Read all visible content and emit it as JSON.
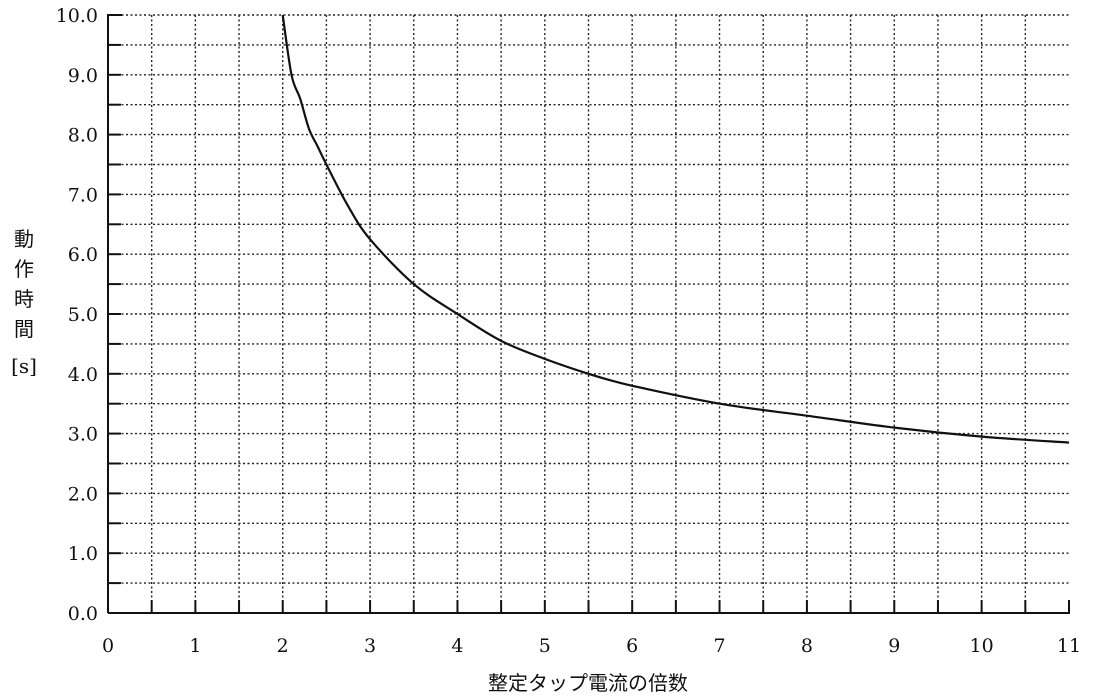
{
  "chart_data": {
    "type": "line",
    "xlabel": "整定タップ電流の倍数",
    "ylabel_chars": [
      "動",
      "作",
      "時",
      "間",
      "[s]"
    ],
    "xlim": [
      0,
      11
    ],
    "ylim": [
      0,
      10
    ],
    "x_ticks": [
      0,
      1,
      2,
      3,
      4,
      5,
      6,
      7,
      8,
      9,
      10,
      11
    ],
    "x_tick_labels": [
      "0",
      "1",
      "2",
      "3",
      "4",
      "5",
      "6",
      "7",
      "8",
      "9",
      "10",
      "11"
    ],
    "y_ticks": [
      0,
      1,
      2,
      3,
      4,
      5,
      6,
      7,
      8,
      9,
      10
    ],
    "y_tick_labels": [
      "0.0",
      "1.0",
      "2.0",
      "3.0",
      "4.0",
      "5.0",
      "6.0",
      "7.0",
      "8.0",
      "9.0",
      "10.0"
    ],
    "grid": true,
    "series": [
      {
        "x": [
          2.0,
          2.1,
          2.2,
          2.3,
          2.4,
          2.5,
          2.75,
          3.0,
          3.5,
          4.0,
          4.5,
          5.0,
          5.5,
          6.0,
          7.0,
          8.0,
          9.0,
          10.0,
          11.0
        ],
        "y": [
          10.0,
          9.0,
          8.6,
          8.1,
          7.8,
          7.5,
          6.8,
          6.25,
          5.5,
          5.0,
          4.55,
          4.25,
          4.0,
          3.8,
          3.5,
          3.3,
          3.1,
          2.95,
          2.85
        ]
      }
    ]
  }
}
